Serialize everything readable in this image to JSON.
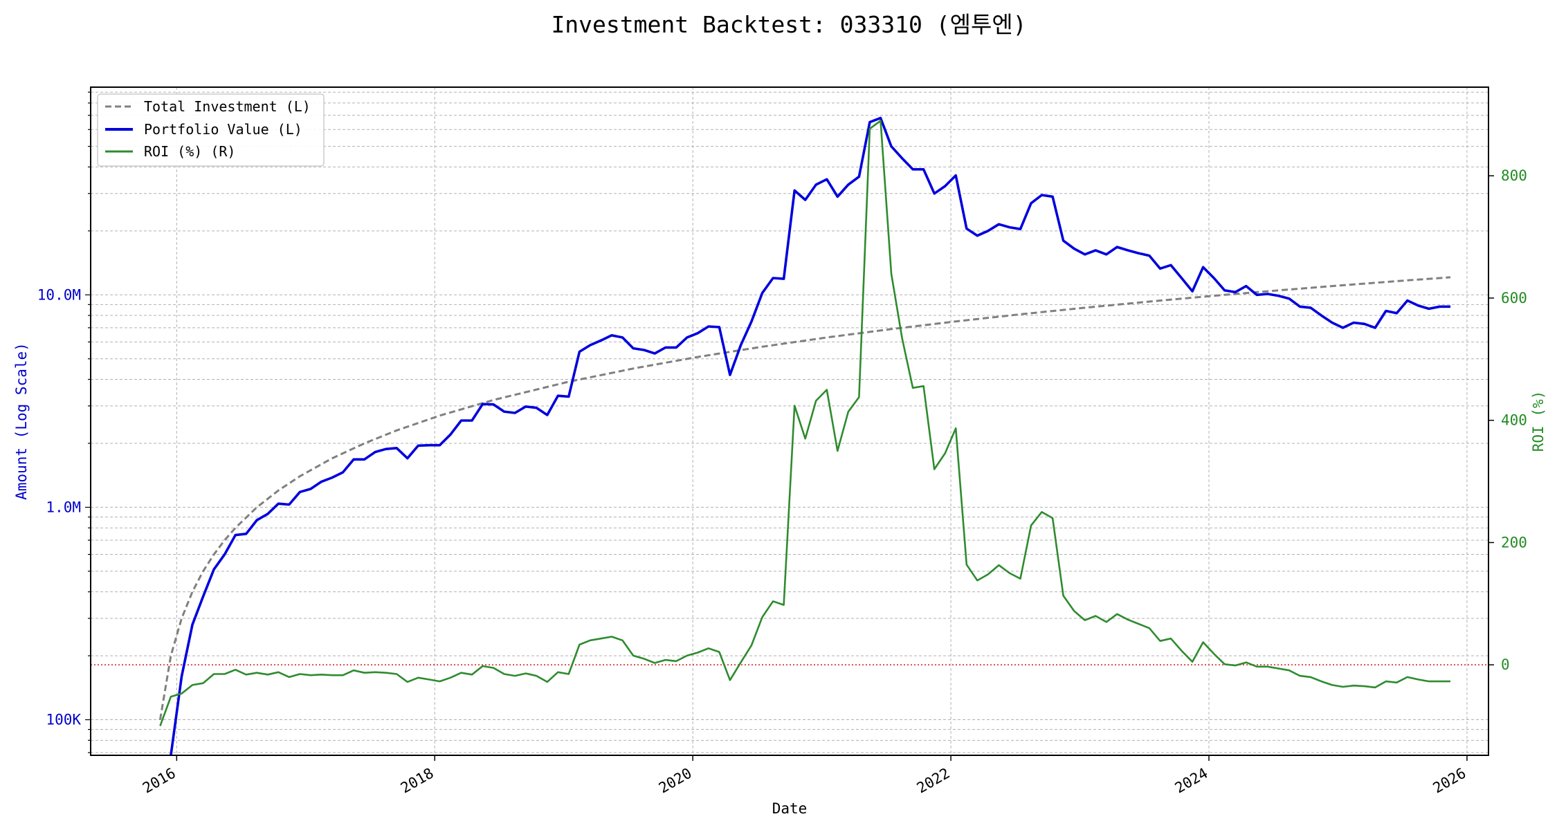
{
  "chart_data": {
    "type": "line",
    "title": "Investment Backtest: 033310 (엠투엔)",
    "xlabel": "Date",
    "ylabel_left": "Amount (Log Scale)",
    "ylabel_right": "ROI (%)",
    "x_ticks": [
      "2016",
      "2018",
      "2020",
      "2022",
      "2024",
      "2026"
    ],
    "y_left_ticks": [
      {
        "value": 100000,
        "label": "100K"
      },
      {
        "value": 1000000,
        "label": "1.0M"
      },
      {
        "value": 10000000,
        "label": "10.0M"
      }
    ],
    "y_right_ticks": [
      {
        "value": 0,
        "label": "0"
      },
      {
        "value": 200,
        "label": "200"
      },
      {
        "value": 400,
        "label": "400"
      },
      {
        "value": 600,
        "label": "600"
      },
      {
        "value": 800,
        "label": "800"
      }
    ],
    "x_range": [
      "2015-05-01",
      "2026-03-01"
    ],
    "y_left_range": [
      68000,
      95000000
    ],
    "y_left_scale": "log",
    "y_right_range": [
      -148,
      945
    ],
    "grid": true,
    "legend_position": "top-left",
    "reference_line": {
      "axis": "right",
      "value": 0,
      "style": "dotted",
      "color": "#d62728"
    },
    "colors": {
      "total_investment": "#808080",
      "portfolio_value": "#0000dd",
      "roi": "#2e8b2e",
      "left_axis": "#0000cc",
      "right_axis": "#228b22"
    },
    "series": [
      {
        "name": "Total Investment (L)",
        "axis": "left",
        "style": "dashed",
        "x": [
          "2015-11",
          "2015-12",
          "2016-01",
          "2016-02",
          "2016-03",
          "2016-04",
          "2016-05",
          "2016-06",
          "2016-08",
          "2016-10",
          "2016-12",
          "2017-03",
          "2017-06",
          "2017-09",
          "2018-01",
          "2018-06",
          "2019-01",
          "2019-07",
          "2020-01",
          "2020-07",
          "2021-01",
          "2021-07",
          "2022-01",
          "2022-07",
          "2023-01",
          "2023-07",
          "2024-01",
          "2024-07",
          "2025-01",
          "2025-07",
          "2025-11"
        ],
        "values": [
          100000,
          200000,
          300000,
          400000,
          500000,
          600000,
          700000,
          800000,
          1000000,
          1200000,
          1400000,
          1700000,
          2000000,
          2300000,
          2700000,
          3200000,
          3900000,
          4500000,
          5100000,
          5700000,
          6300000,
          6900000,
          7500000,
          8100000,
          8700000,
          9300000,
          9900000,
          10500000,
          11100000,
          11700000,
          12100000
        ]
      },
      {
        "name": "Portfolio Value (L)",
        "axis": "left",
        "style": "solid",
        "x": [
          "2015-12",
          "2016-01",
          "2016-02",
          "2016-03",
          "2016-04",
          "2016-05",
          "2016-06",
          "2016-07",
          "2016-08",
          "2016-09",
          "2016-10",
          "2016-11",
          "2016-12",
          "2017-01",
          "2017-02",
          "2017-03",
          "2017-04",
          "2017-05",
          "2017-06",
          "2017-07",
          "2017-08",
          "2017-09",
          "2017-10",
          "2017-11",
          "2017-12",
          "2018-01",
          "2018-02",
          "2018-03",
          "2018-04",
          "2018-05",
          "2018-06",
          "2018-07",
          "2018-08",
          "2018-09",
          "2018-10",
          "2018-11",
          "2018-12",
          "2019-01",
          "2019-02",
          "2019-03",
          "2019-04",
          "2019-05",
          "2019-06",
          "2019-07",
          "2019-08",
          "2019-09",
          "2019-10",
          "2019-11",
          "2019-12",
          "2020-01",
          "2020-02",
          "2020-03",
          "2020-04",
          "2020-05",
          "2020-06",
          "2020-07",
          "2020-08",
          "2020-09",
          "2020-10",
          "2020-11",
          "2020-12",
          "2021-01",
          "2021-02",
          "2021-03",
          "2021-04",
          "2021-05",
          "2021-06",
          "2021-07",
          "2021-08",
          "2021-09",
          "2021-10",
          "2021-11",
          "2021-12",
          "2022-01",
          "2022-02",
          "2022-03",
          "2022-04",
          "2022-05",
          "2022-06",
          "2022-07",
          "2022-08",
          "2022-09",
          "2022-10",
          "2022-11",
          "2022-12",
          "2023-01",
          "2023-02",
          "2023-03",
          "2023-04",
          "2023-05",
          "2023-06",
          "2023-07",
          "2023-08",
          "2023-09",
          "2023-10",
          "2023-11",
          "2023-12",
          "2024-01",
          "2024-02",
          "2024-03",
          "2024-04",
          "2024-05",
          "2024-06",
          "2024-07",
          "2024-08",
          "2024-09",
          "2024-10",
          "2024-11",
          "2024-12",
          "2025-01",
          "2025-02",
          "2025-03",
          "2025-04",
          "2025-05",
          "2025-06",
          "2025-07",
          "2025-08",
          "2025-09",
          "2025-10",
          "2025-11"
        ],
        "values": [
          60000,
          160000,
          280000,
          380000,
          510000,
          600000,
          740000,
          750000,
          870000,
          930000,
          1040000,
          1030000,
          1180000,
          1220000,
          1320000,
          1380000,
          1460000,
          1680000,
          1680000,
          1820000,
          1880000,
          1900000,
          1700000,
          1950000,
          1960000,
          1960000,
          2200000,
          2560000,
          2560000,
          3060000,
          3050000,
          2820000,
          2780000,
          2980000,
          2940000,
          2720000,
          3350000,
          3320000,
          5400000,
          5800000,
          6100000,
          6450000,
          6300000,
          5600000,
          5500000,
          5300000,
          5650000,
          5650000,
          6300000,
          6600000,
          7100000,
          7050000,
          4200000,
          5800000,
          7500000,
          10200000,
          12000000,
          11900000,
          31000000,
          28000000,
          33000000,
          35000000,
          29000000,
          33000000,
          36000000,
          65000000,
          68000000,
          50000000,
          44000000,
          39000000,
          39000000,
          30000000,
          32500000,
          36500000,
          20500000,
          19000000,
          20000000,
          21500000,
          20800000,
          20400000,
          27000000,
          29500000,
          29000000,
          18000000,
          16500000,
          15500000,
          16200000,
          15500000,
          16800000,
          16200000,
          15700000,
          15300000,
          13300000,
          13800000,
          12000000,
          10400000,
          13500000,
          12000000,
          10500000,
          10300000,
          11000000,
          10000000,
          10100000,
          9900000,
          9600000,
          8800000,
          8700000,
          8000000,
          7400000,
          7000000,
          7400000,
          7300000,
          7000000,
          8400000,
          8200000,
          9400000,
          8900000,
          8600000,
          8800000,
          8800000
        ]
      },
      {
        "name": "ROI (%) (R)",
        "axis": "right",
        "style": "solid",
        "x": [
          "2015-11",
          "2015-12",
          "2016-01",
          "2016-02",
          "2016-03",
          "2016-04",
          "2016-05",
          "2016-06",
          "2016-07",
          "2016-08",
          "2016-09",
          "2016-10",
          "2016-11",
          "2016-12",
          "2017-01",
          "2017-02",
          "2017-03",
          "2017-04",
          "2017-05",
          "2017-06",
          "2017-07",
          "2017-08",
          "2017-09",
          "2017-10",
          "2017-11",
          "2017-12",
          "2018-01",
          "2018-02",
          "2018-03",
          "2018-04",
          "2018-05",
          "2018-06",
          "2018-07",
          "2018-08",
          "2018-09",
          "2018-10",
          "2018-11",
          "2018-12",
          "2019-01",
          "2019-02",
          "2019-03",
          "2019-04",
          "2019-05",
          "2019-06",
          "2019-07",
          "2019-08",
          "2019-09",
          "2019-10",
          "2019-11",
          "2019-12",
          "2020-01",
          "2020-02",
          "2020-03",
          "2020-04",
          "2020-05",
          "2020-06",
          "2020-07",
          "2020-08",
          "2020-09",
          "2020-10",
          "2020-11",
          "2020-12",
          "2021-01",
          "2021-02",
          "2021-03",
          "2021-04",
          "2021-05",
          "2021-06",
          "2021-07",
          "2021-08",
          "2021-09",
          "2021-10",
          "2021-11",
          "2021-12",
          "2022-01",
          "2022-02",
          "2022-03",
          "2022-04",
          "2022-05",
          "2022-06",
          "2022-07",
          "2022-08",
          "2022-09",
          "2022-10",
          "2022-11",
          "2022-12",
          "2023-01",
          "2023-02",
          "2023-03",
          "2023-04",
          "2023-05",
          "2023-06",
          "2023-07",
          "2023-08",
          "2023-09",
          "2023-10",
          "2023-11",
          "2023-12",
          "2024-01",
          "2024-02",
          "2024-03",
          "2024-04",
          "2024-05",
          "2024-06",
          "2024-07",
          "2024-08",
          "2024-09",
          "2024-10",
          "2024-11",
          "2024-12",
          "2025-01",
          "2025-02",
          "2025-03",
          "2025-04",
          "2025-05",
          "2025-06",
          "2025-07",
          "2025-08",
          "2025-09",
          "2025-10",
          "2025-11"
        ],
        "values": [
          -100,
          -52,
          -47,
          -33,
          -30,
          -15,
          -15,
          -8,
          -16,
          -13,
          -16,
          -12,
          -20,
          -15,
          -17,
          -16,
          -17,
          -17,
          -9,
          -13,
          -12,
          -13,
          -15,
          -28,
          -21,
          -24,
          -27,
          -21,
          -13,
          -16,
          -2,
          -5,
          -15,
          -18,
          -14,
          -18,
          -28,
          -12,
          -15,
          33,
          40,
          43,
          46,
          40,
          15,
          10,
          3,
          8,
          6,
          15,
          20,
          27,
          21,
          -25,
          4,
          32,
          78,
          104,
          98,
          424,
          370,
          432,
          450,
          350,
          414,
          438,
          877,
          890,
          640,
          535,
          453,
          456,
          320,
          346,
          387,
          164,
          138,
          148,
          163,
          150,
          141,
          228,
          250,
          240,
          113,
          88,
          73,
          80,
          70,
          83,
          74,
          67,
          60,
          39,
          43,
          23,
          5,
          37,
          18,
          1,
          -1,
          4,
          -3,
          -3,
          -6,
          -9,
          -18,
          -20,
          -27,
          -33,
          -36,
          -34,
          -35,
          -37,
          -27,
          -29,
          -20,
          -24,
          -27,
          -27,
          -27
        ]
      }
    ]
  }
}
